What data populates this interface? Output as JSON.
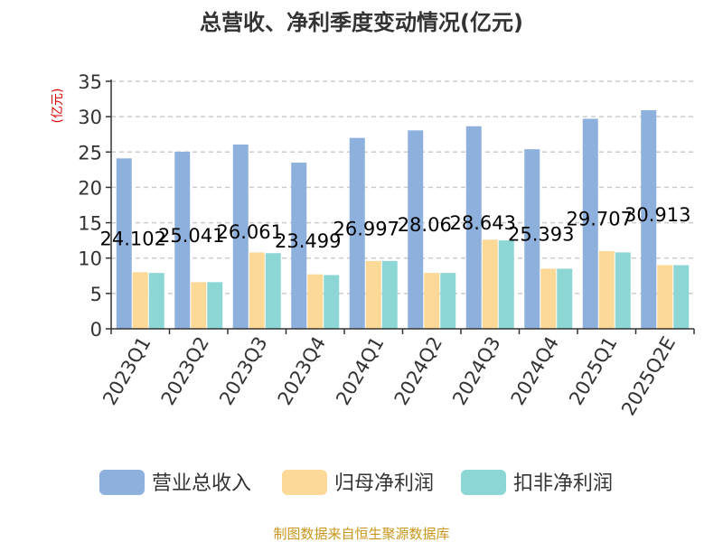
{
  "chart_data": {
    "type": "bar",
    "title": "总营收、净利季度变动情况(亿元)",
    "ylabel": "(亿元)",
    "xlabel": "",
    "ylim": [
      0,
      35
    ],
    "yticks": [
      0,
      5,
      10,
      15,
      20,
      25,
      30,
      35
    ],
    "grid": "horizontal-dashed",
    "legend_position": "bottom",
    "categories": [
      "2023Q1",
      "2023Q2",
      "2023Q3",
      "2023Q4",
      "2024Q1",
      "2024Q2",
      "2024Q3",
      "2024Q4",
      "2025Q1",
      "2025Q2E"
    ],
    "series": [
      {
        "name": "营业总收入",
        "color": "#8eb0dd",
        "values": [
          24.102,
          25.041,
          26.061,
          23.499,
          26.997,
          28.06,
          28.643,
          25.393,
          29.707,
          30.913
        ],
        "labels": [
          "24.102",
          "25.041",
          "26.061",
          "23.499",
          "26.997",
          "28.06",
          "28.643",
          "25.393",
          "29.707",
          "30.913"
        ]
      },
      {
        "name": "归母净利润",
        "color": "#fdd997",
        "values": [
          8.0,
          6.6,
          10.8,
          7.7,
          9.6,
          7.9,
          12.6,
          8.5,
          11.0,
          9.0
        ]
      },
      {
        "name": "扣非净利润",
        "color": "#8dd6d6",
        "values": [
          7.9,
          6.6,
          10.7,
          7.6,
          9.6,
          7.9,
          12.5,
          8.5,
          10.8,
          9.0
        ]
      }
    ]
  },
  "footer": {
    "source": "制图数据来自恒生聚源数据库"
  },
  "colors": {
    "title": "#333333",
    "axis": "#333333",
    "grid": "#cccccc",
    "ylabel": "#e00000",
    "source": "#c8961e",
    "data_label": "#000000"
  }
}
